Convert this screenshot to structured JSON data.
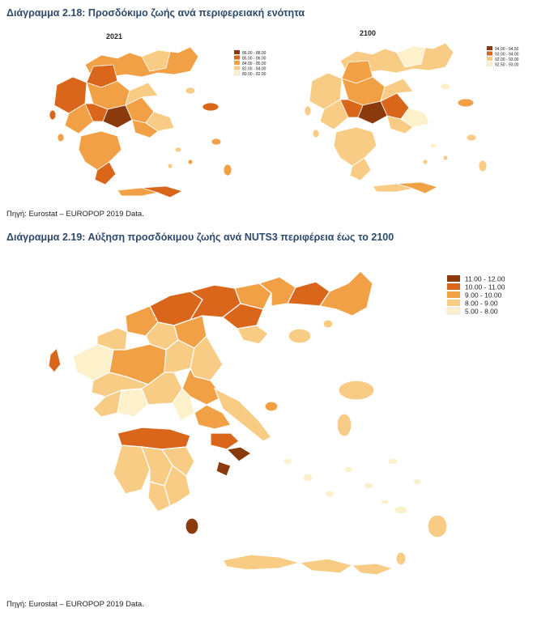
{
  "figure_218": {
    "title": "Διάγραμμα 2.18: Προσδόκιμο ζωής ανά περιφερειακή ενότητα",
    "source": "Πηγή: Eurostat – EUROPOP 2019 Data.",
    "map_2021": {
      "year_label": "2021",
      "legend": [
        {
          "label": "86.00 - 88.00",
          "color": "#8b3a0e"
        },
        {
          "label": "85.00 - 86.00",
          "color": "#d9661a"
        },
        {
          "label": "84.00 - 85.00",
          "color": "#f2a045"
        },
        {
          "label": "82.00 - 84.00",
          "color": "#f8cc85"
        },
        {
          "label": "80.00 - 82.00",
          "color": "#fdf1cc"
        }
      ]
    },
    "map_2100": {
      "year_label": "2100",
      "legend": [
        {
          "label": "94.00 - 94.50",
          "color": "#8b3a0e"
        },
        {
          "label": "93.00 - 94.00",
          "color": "#d9661a"
        },
        {
          "label": "92.00 - 93.00",
          "color": "#f8cc85"
        },
        {
          "label": "92.50 - 93.00",
          "color": "#fdf1cc"
        }
      ]
    }
  },
  "figure_219": {
    "title": "Διάγραμμα 2.19: Αύξηση προσδόκιμου ζωής ανά NUTS3 περιφέρεια έως το 2100",
    "source": "Πηγή: Eurostat – EUROPOP 2019 Data.",
    "legend": [
      {
        "label": "11.00 - 12.00",
        "color": "#8b3a0e"
      },
      {
        "label": "10.00 - 11.00",
        "color": "#d9661a"
      },
      {
        "label": "9.00 - 10.00",
        "color": "#f2a045"
      },
      {
        "label": "8.00 - 9.00",
        "color": "#f8cc85"
      },
      {
        "label": "5.00 - 8.00",
        "color": "#fdf1cc"
      }
    ]
  }
}
